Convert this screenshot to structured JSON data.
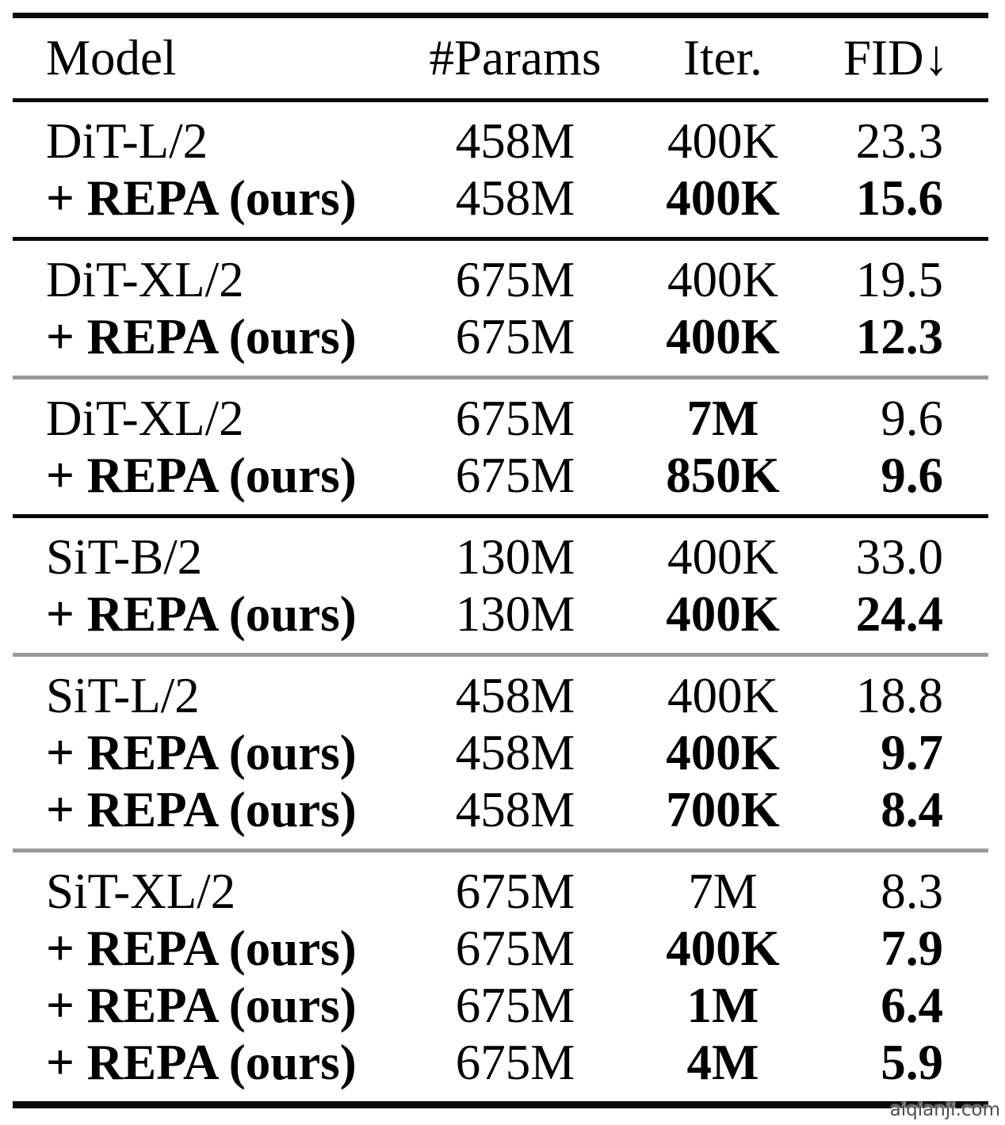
{
  "header": {
    "columns": [
      "Model",
      "#Params",
      "Iter.",
      "FID↓"
    ]
  },
  "groups": [
    {
      "divider_after": "black",
      "rows": [
        {
          "model": "DiT-L/2",
          "model_bold": false,
          "params": "458M",
          "iter": "400K",
          "iter_bold": false,
          "fid": "23.3",
          "fid_bold": false
        },
        {
          "model": "+ REPA (ours)",
          "model_bold": true,
          "params": "458M",
          "iter": "400K",
          "iter_bold": true,
          "fid": "15.6",
          "fid_bold": true
        }
      ]
    },
    {
      "divider_after": "gray",
      "rows": [
        {
          "model": "DiT-XL/2",
          "model_bold": false,
          "params": "675M",
          "iter": "400K",
          "iter_bold": false,
          "fid": "19.5",
          "fid_bold": false
        },
        {
          "model": "+ REPA (ours)",
          "model_bold": true,
          "params": "675M",
          "iter": "400K",
          "iter_bold": true,
          "fid": "12.3",
          "fid_bold": true
        }
      ]
    },
    {
      "divider_after": "black",
      "rows": [
        {
          "model": "DiT-XL/2",
          "model_bold": false,
          "params": "675M",
          "iter": "7M",
          "iter_bold": true,
          "fid": "9.6",
          "fid_bold": false
        },
        {
          "model": "+ REPA (ours)",
          "model_bold": true,
          "params": "675M",
          "iter": "850K",
          "iter_bold": true,
          "fid": "9.6",
          "fid_bold": true
        }
      ]
    },
    {
      "divider_after": "gray",
      "rows": [
        {
          "model": "SiT-B/2",
          "model_bold": false,
          "params": "130M",
          "iter": "400K",
          "iter_bold": false,
          "fid": "33.0",
          "fid_bold": false
        },
        {
          "model": "+ REPA (ours)",
          "model_bold": true,
          "params": "130M",
          "iter": "400K",
          "iter_bold": true,
          "fid": "24.4",
          "fid_bold": true
        }
      ]
    },
    {
      "divider_after": "gray",
      "rows": [
        {
          "model": "SiT-L/2",
          "model_bold": false,
          "params": "458M",
          "iter": "400K",
          "iter_bold": false,
          "fid": "18.8",
          "fid_bold": false
        },
        {
          "model": "+ REPA (ours)",
          "model_bold": true,
          "params": "458M",
          "iter": "400K",
          "iter_bold": true,
          "fid": "9.7",
          "fid_bold": true
        },
        {
          "model": "+ REPA (ours)",
          "model_bold": true,
          "params": "458M",
          "iter": "700K",
          "iter_bold": true,
          "fid": "8.4",
          "fid_bold": true
        }
      ]
    },
    {
      "divider_after": null,
      "rows": [
        {
          "model": "SiT-XL/2",
          "model_bold": false,
          "params": "675M",
          "iter": "7M",
          "iter_bold": false,
          "fid": "8.3",
          "fid_bold": false
        },
        {
          "model": "+ REPA (ours)",
          "model_bold": true,
          "params": "675M",
          "iter": "400K",
          "iter_bold": true,
          "fid": "7.9",
          "fid_bold": true
        },
        {
          "model": "+ REPA (ours)",
          "model_bold": true,
          "params": "675M",
          "iter": "1M",
          "iter_bold": true,
          "fid": "6.4",
          "fid_bold": true
        },
        {
          "model": "+ REPA (ours)",
          "model_bold": true,
          "params": "675M",
          "iter": "4M",
          "iter_bold": true,
          "fid": "5.9",
          "fid_bold": true
        }
      ]
    }
  ],
  "watermark": "aiqianji.com",
  "colors": {
    "text": "#000000",
    "rule_black": "#0a0a0a",
    "rule_gray": "#9a9a9a",
    "watermark_text": "#4d4d4d"
  }
}
